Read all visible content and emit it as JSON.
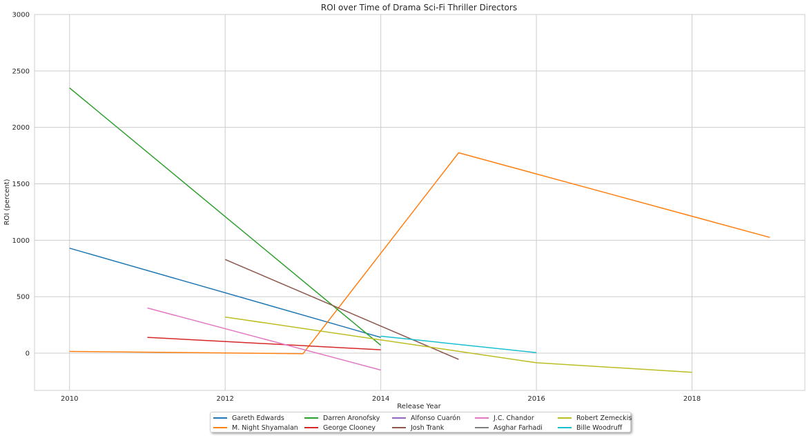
{
  "chart_data": {
    "type": "line",
    "title": "ROI over Time of Drama Sci-Fi Thriller Directors",
    "xlabel": "Release Year",
    "ylabel": "ROI (percent)",
    "xlim": [
      2009.55,
      2019.45
    ],
    "ylim": [
      -330,
      3000
    ],
    "xticks": [
      2010,
      2012,
      2014,
      2016,
      2018
    ],
    "yticks": [
      0,
      500,
      1000,
      1500,
      2000,
      2500,
      3000
    ],
    "grid": true,
    "legend_position": "bottom-center",
    "series": [
      {
        "name": "Gareth Edwards",
        "color": "#1f77b4",
        "x": [
          2010,
          2014
        ],
        "y": [
          930,
          140
        ]
      },
      {
        "name": "M. Night Shyamalan",
        "color": "#ff7f0e",
        "x": [
          2010,
          2013,
          2015,
          2019
        ],
        "y": [
          15,
          -5,
          1775,
          1025
        ]
      },
      {
        "name": "Darren Aronofsky",
        "color": "#2ca02c",
        "x": [
          2010,
          2014
        ],
        "y": [
          2350,
          70
        ]
      },
      {
        "name": "George Clooney",
        "color": "#d62728",
        "x": [
          2011,
          2014
        ],
        "y": [
          140,
          30
        ]
      },
      {
        "name": "Alfonso Cuarón",
        "color": "#9467bd",
        "x": [],
        "y": []
      },
      {
        "name": "Josh Trank",
        "color": "#8c564b",
        "x": [
          2012,
          2015
        ],
        "y": [
          830,
          -55
        ]
      },
      {
        "name": "J.C. Chandor",
        "color": "#e377c2",
        "x": [
          2011,
          2014
        ],
        "y": [
          400,
          -150
        ]
      },
      {
        "name": "Asghar Farhadi",
        "color": "#7f7f7f",
        "x": [],
        "y": []
      },
      {
        "name": "Robert Zemeckis",
        "color": "#bcbd22",
        "x": [
          2012,
          2016,
          2018
        ],
        "y": [
          320,
          -85,
          -170
        ]
      },
      {
        "name": "Bille Woodruff",
        "color": "#17becf",
        "x": [
          2014,
          2016
        ],
        "y": [
          150,
          5
        ]
      }
    ]
  }
}
